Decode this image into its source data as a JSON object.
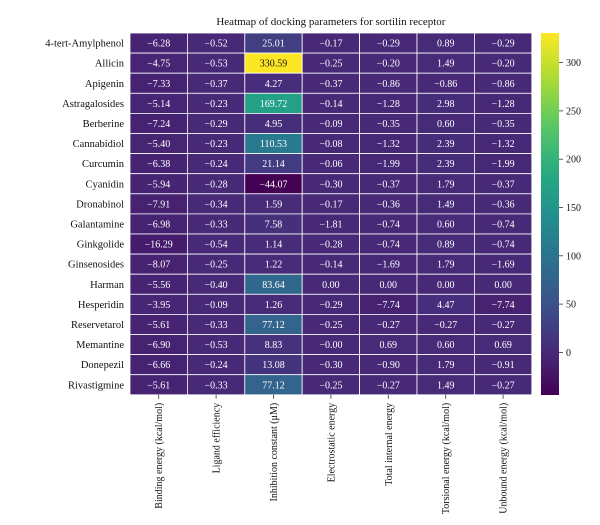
{
  "chart_data": {
    "type": "heatmap",
    "title": "Heatmap of docking parameters for sortilin receptor",
    "rows": [
      "4-tert-Amylphenol",
      "Allicin",
      "Apigenin",
      "Astragalosides",
      "Berberine",
      "Cannabidiol",
      "Curcumin",
      "Cyanidin",
      "Dronabinol",
      "Galantamine",
      "Ginkgolide",
      "Ginsenosides",
      "Harman",
      "Hesperidin",
      "Reservetarol",
      "Memantine",
      "Donepezil",
      "Rivastigmine"
    ],
    "columns": [
      "Binding energy (kcal/mol)",
      "Ligand efficiency",
      "Inhibition constant (μM)",
      "Electrostatic energy",
      "Total internal energy",
      "Torsional energy (kcal/mol)",
      "Unbound energy (kcal/mol)"
    ],
    "values": [
      [
        -6.28,
        -0.52,
        25.01,
        -0.17,
        -0.29,
        0.89,
        -0.29
      ],
      [
        -4.75,
        -0.53,
        330.59,
        -0.25,
        -0.2,
        1.49,
        -0.2
      ],
      [
        -7.33,
        -0.37,
        4.27,
        -0.37,
        -0.86,
        -0.86,
        -0.86
      ],
      [
        -5.14,
        -0.23,
        169.72,
        -0.14,
        -1.28,
        2.98,
        -1.28
      ],
      [
        -7.24,
        -0.29,
        4.95,
        -0.09,
        -0.35,
        0.6,
        -0.35
      ],
      [
        -5.4,
        -0.23,
        110.53,
        -0.08,
        -1.32,
        2.39,
        -1.32
      ],
      [
        -6.38,
        -0.24,
        21.14,
        -0.06,
        -1.99,
        2.39,
        -1.99
      ],
      [
        -5.94,
        -0.28,
        -44.07,
        -0.3,
        -0.37,
        1.79,
        -0.37
      ],
      [
        -7.91,
        -0.34,
        1.59,
        -0.17,
        -0.36,
        1.49,
        -0.36
      ],
      [
        -6.98,
        -0.33,
        7.58,
        -1.81,
        -0.74,
        0.6,
        -0.74
      ],
      [
        -16.29,
        -0.54,
        1.14,
        -0.28,
        -0.74,
        0.89,
        -0.74
      ],
      [
        -8.07,
        -0.25,
        1.22,
        -0.14,
        -1.69,
        1.79,
        -1.69
      ],
      [
        -5.56,
        -0.4,
        83.64,
        0.0,
        0.0,
        0.0,
        0.0
      ],
      [
        -3.95,
        -0.09,
        1.26,
        -0.29,
        -7.74,
        4.47,
        -7.74
      ],
      [
        -5.61,
        -0.33,
        77.12,
        -0.25,
        -0.27,
        -0.27,
        -0.27
      ],
      [
        -6.9,
        -0.53,
        8.83,
        -0.0,
        0.69,
        0.6,
        0.69
      ],
      [
        -6.66,
        -0.24,
        13.08,
        -0.3,
        -0.9,
        1.79,
        -0.91
      ],
      [
        -5.61,
        -0.33,
        77.12,
        -0.25,
        -0.27,
        1.49,
        -0.27
      ]
    ],
    "display": [
      [
        "−6.28",
        "−0.52",
        "25.01",
        "−0.17",
        "−0.29",
        "0.89",
        "−0.29"
      ],
      [
        "−4.75",
        "−0.53",
        "330.59",
        "−0.25",
        "−0.20",
        "1.49",
        "−0.20"
      ],
      [
        "−7.33",
        "−0.37",
        "4.27",
        "−0.37",
        "−0.86",
        "−0.86",
        "−0.86"
      ],
      [
        "−5.14",
        "−0.23",
        "169.72",
        "−0.14",
        "−1.28",
        "2.98",
        "−1.28"
      ],
      [
        "−7.24",
        "−0.29",
        "4.95",
        "−0.09",
        "−0.35",
        "0.60",
        "−0.35"
      ],
      [
        "−5.40",
        "−0.23",
        "110.53",
        "−0.08",
        "−1.32",
        "2.39",
        "−1.32"
      ],
      [
        "−6.38",
        "−0.24",
        "21.14",
        "−0.06",
        "−1.99",
        "2.39",
        "−1.99"
      ],
      [
        "−5.94",
        "−0.28",
        "−44.07",
        "−0.30",
        "−0.37",
        "1.79",
        "−0.37"
      ],
      [
        "−7.91",
        "−0.34",
        "1.59",
        "−0.17",
        "−0.36",
        "1.49",
        "−0.36"
      ],
      [
        "−6.98",
        "−0.33",
        "7.58",
        "−1.81",
        "−0.74",
        "0.60",
        "−0.74"
      ],
      [
        "−16.29",
        "−0.54",
        "1.14",
        "−0.28",
        "−0.74",
        "0.89",
        "−0.74"
      ],
      [
        "−8.07",
        "−0.25",
        "1.22",
        "−0.14",
        "−1.69",
        "1.79",
        "−1.69"
      ],
      [
        "−5.56",
        "−0.40",
        "83.64",
        "0.00",
        "0.00",
        "0.00",
        "0.00"
      ],
      [
        "−3.95",
        "−0.09",
        "1.26",
        "−0.29",
        "−7.74",
        "4.47",
        "−7.74"
      ],
      [
        "−5.61",
        "−0.33",
        "77.12",
        "−0.25",
        "−0.27",
        "−0.27",
        "−0.27"
      ],
      [
        "−6.90",
        "−0.53",
        "8.83",
        "−0.00",
        "0.69",
        "0.60",
        "0.69"
      ],
      [
        "−6.66",
        "−0.24",
        "13.08",
        "−0.30",
        "−0.90",
        "1.79",
        "−0.91"
      ],
      [
        "−5.61",
        "−0.33",
        "77.12",
        "−0.25",
        "−0.27",
        "1.49",
        "−0.27"
      ]
    ],
    "colorbar": {
      "colormap": "viridis",
      "range": [
        -44.07,
        330.59
      ],
      "ticks": [
        0,
        50,
        100,
        150,
        200,
        250,
        300
      ]
    },
    "grid": true
  }
}
